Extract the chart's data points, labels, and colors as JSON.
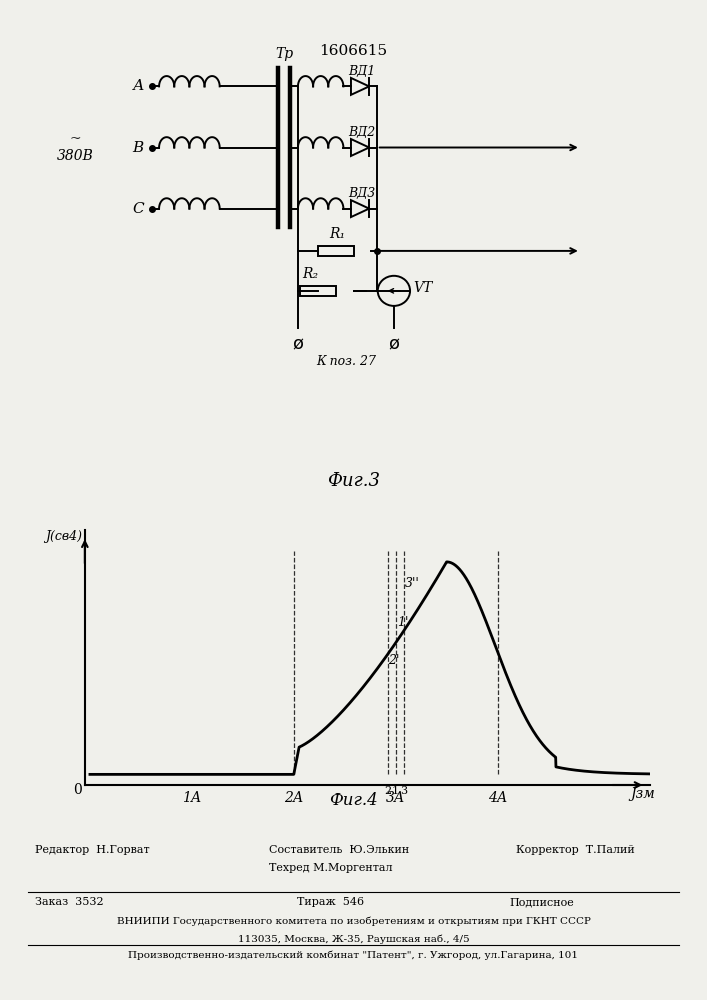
{
  "title": "1606615",
  "fig3_caption": "Фиг.3",
  "fig4_caption": "Фиг.4",
  "voltage_label": "~\n380В",
  "phase_labels": [
    "А",
    "В",
    "С"
  ],
  "transformer_label": "Тр",
  "diode_labels": [
    "ВД1",
    "ВД2",
    "ВД3"
  ],
  "r1_label": "R₁",
  "r2_label": "R₂",
  "vt_label": "VT",
  "ground_label": "К поз. 27",
  "graph_ylabel": "J(св4)",
  "graph_xlabel": "Jзм",
  "x_tick_labels": [
    "1А",
    "2А",
    "3А",
    "4А"
  ],
  "curve_label_3": "3''",
  "curve_label_1": "1'",
  "curve_label_2": "2'",
  "bottom_labels": [
    "2",
    "1",
    "3"
  ],
  "footer_line1_left": "Редактор  Н.Горват",
  "footer_line1_mid_a": "Составитель  Ю.Элькин",
  "footer_line1_mid_b": "Техред М.Моргентал",
  "footer_line1_right": "Корректор  Т.Палий",
  "footer_line2_left": "Заказ  3532",
  "footer_line2_mid": "Тираж  546",
  "footer_line2_right": "Подписное",
  "footer_line3": "ВНИИПИ Государственного комитета по изобретениям и открытиям при ГКНТ СССР",
  "footer_line4": "113035, Москва, Ж-35, Раушская наб., 4/5",
  "footer_line5": "Производственно-издательский комбинат \"Патент\", г. Ужгород, ул.Гагарина, 101",
  "bg_color": "#f0f0eb",
  "line_color": "#1a1a1a"
}
